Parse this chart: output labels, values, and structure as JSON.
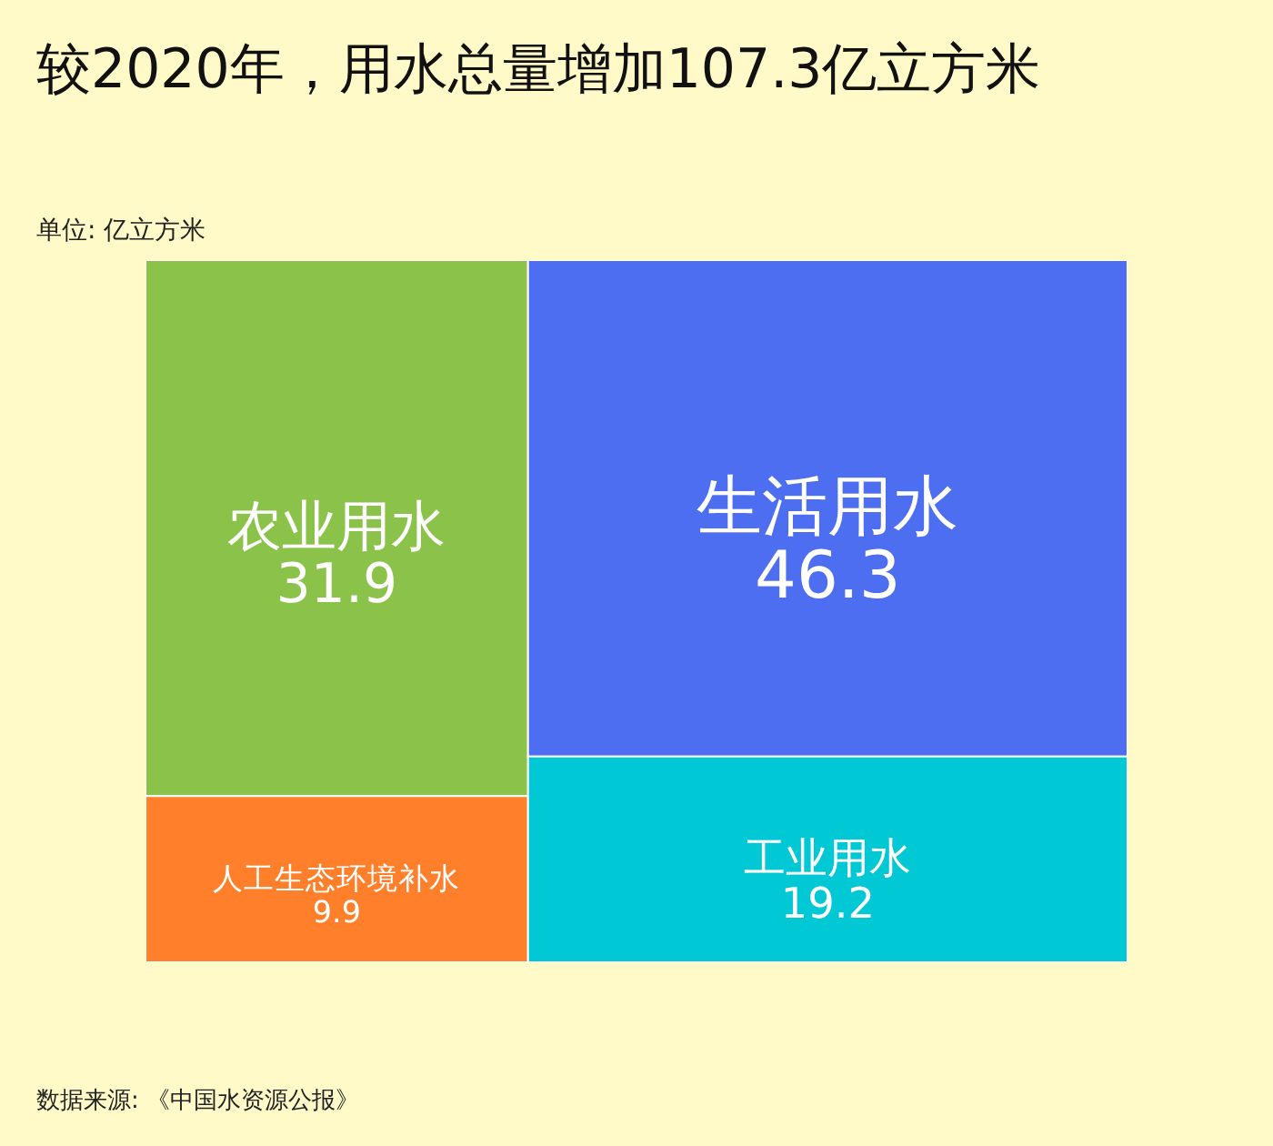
{
  "chart_data": {
    "type": "other",
    "title": "较2020年，用水总量增加107.3亿立方米",
    "subtitle": "单位: 亿立方米",
    "categories": [
      "农业用水",
      "人工生态环境补水",
      "生活用水",
      "工业用水"
    ],
    "values": [
      31.9,
      9.9,
      46.3,
      19.2
    ],
    "colors": [
      "#8bc34a",
      "#ff7f2a",
      "#4d6ef0",
      "#00c8d4"
    ],
    "data_labels": true,
    "annotations": [
      "数据来源: 《中国水资源公报》"
    ]
  }
}
